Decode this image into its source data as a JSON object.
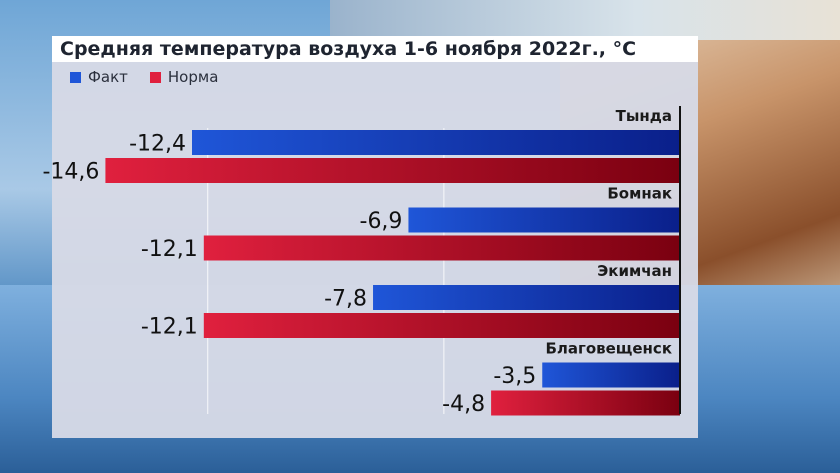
{
  "chart_data": {
    "type": "bar",
    "orientation": "horizontal",
    "title": "Средняя температура воздуха 1-6 ноября 2022г., °С",
    "categories": [
      "Тында",
      "Бомнак",
      "Экимчан",
      "Благовещенск"
    ],
    "series": [
      {
        "name": "Факт",
        "values": [
          -12.4,
          -6.9,
          -7.8,
          -3.5
        ],
        "labels": [
          "-12,4",
          "-6,9",
          "-7,8",
          "-3,5"
        ],
        "color": "#1f56d8"
      },
      {
        "name": "Норма",
        "values": [
          -14.6,
          -12.1,
          -12.1,
          -4.8
        ],
        "labels": [
          "-14,6",
          "-12,1",
          "-12,1",
          "-4,8"
        ],
        "color": "#e0203e"
      }
    ],
    "xlim": [
      -15.5,
      0
    ],
    "grid": true,
    "legend": "top-left"
  },
  "colors": {
    "fact_dark": "#0a1f8a",
    "norm_dark": "#7a0010"
  }
}
